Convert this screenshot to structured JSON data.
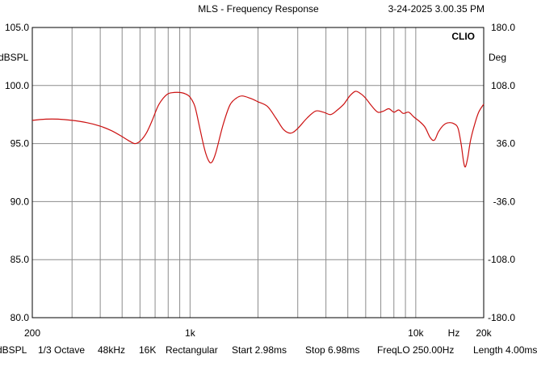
{
  "header": {
    "title": "MLS - Frequency Response",
    "timestamp": "3-24-2025 3.00.35 PM"
  },
  "footer": {
    "items": [
      "dBSPL",
      "1/3 Octave",
      "48kHz",
      "16K",
      "Rectangular",
      "Start 2.98ms",
      "Stop 6.98ms",
      "FreqLO 250.00Hz",
      "Length 4.00ms"
    ]
  },
  "chart_data": {
    "type": "line",
    "title": "MLS - Frequency Response",
    "brand": "CLIO",
    "xscale": "log",
    "xlim": [
      200,
      20000
    ],
    "ylim": [
      80,
      105
    ],
    "ylabel_left": "dBSPL",
    "ylabel_right": "Deg",
    "x_unit": "Hz",
    "grid": true,
    "left_ticks": [
      "105.0",
      "100.0",
      "95.0",
      "90.0",
      "85.0",
      "80.0"
    ],
    "right_ticks": [
      "180.0",
      "108.0",
      "36.0",
      "-36.0",
      "-108.0",
      "-180.0"
    ],
    "x_tick_labels": [
      {
        "value": 200,
        "label": "200"
      },
      {
        "value": 1000,
        "label": "1k"
      },
      {
        "value": 10000,
        "label": "10k"
      },
      {
        "value": 20000,
        "label": "20k"
      }
    ],
    "series": [
      {
        "color": "#cc1111",
        "points": [
          [
            200,
            97.0
          ],
          [
            230,
            97.1
          ],
          [
            260,
            97.1
          ],
          [
            300,
            97.0
          ],
          [
            350,
            96.8
          ],
          [
            400,
            96.5
          ],
          [
            450,
            96.1
          ],
          [
            500,
            95.6
          ],
          [
            540,
            95.2
          ],
          [
            570,
            95.0
          ],
          [
            600,
            95.2
          ],
          [
            640,
            95.9
          ],
          [
            680,
            97.0
          ],
          [
            720,
            98.2
          ],
          [
            760,
            98.9
          ],
          [
            800,
            99.3
          ],
          [
            850,
            99.4
          ],
          [
            900,
            99.4
          ],
          [
            950,
            99.3
          ],
          [
            1000,
            99.0
          ],
          [
            1050,
            98.2
          ],
          [
            1100,
            96.5
          ],
          [
            1160,
            94.5
          ],
          [
            1210,
            93.5
          ],
          [
            1250,
            93.4
          ],
          [
            1300,
            94.2
          ],
          [
            1400,
            96.6
          ],
          [
            1500,
            98.3
          ],
          [
            1600,
            98.9
          ],
          [
            1700,
            99.1
          ],
          [
            1850,
            98.9
          ],
          [
            2000,
            98.6
          ],
          [
            2200,
            98.2
          ],
          [
            2400,
            97.2
          ],
          [
            2600,
            96.2
          ],
          [
            2800,
            95.9
          ],
          [
            3000,
            96.3
          ],
          [
            3300,
            97.2
          ],
          [
            3600,
            97.8
          ],
          [
            3900,
            97.7
          ],
          [
            4200,
            97.5
          ],
          [
            4500,
            97.9
          ],
          [
            4800,
            98.4
          ],
          [
            5100,
            99.1
          ],
          [
            5400,
            99.5
          ],
          [
            5700,
            99.3
          ],
          [
            6000,
            98.9
          ],
          [
            6400,
            98.2
          ],
          [
            6800,
            97.7
          ],
          [
            7200,
            97.8
          ],
          [
            7600,
            98.0
          ],
          [
            8000,
            97.7
          ],
          [
            8400,
            97.9
          ],
          [
            8800,
            97.6
          ],
          [
            9300,
            97.7
          ],
          [
            9800,
            97.3
          ],
          [
            10400,
            96.9
          ],
          [
            11000,
            96.4
          ],
          [
            11600,
            95.5
          ],
          [
            12100,
            95.3
          ],
          [
            12600,
            96.0
          ],
          [
            13300,
            96.6
          ],
          [
            14000,
            96.8
          ],
          [
            14800,
            96.7
          ],
          [
            15400,
            96.3
          ],
          [
            15900,
            94.9
          ],
          [
            16300,
            93.4
          ],
          [
            16600,
            93.0
          ],
          [
            17000,
            93.8
          ],
          [
            17500,
            95.3
          ],
          [
            18200,
            96.6
          ],
          [
            19000,
            97.7
          ],
          [
            20000,
            98.4
          ]
        ]
      }
    ]
  }
}
